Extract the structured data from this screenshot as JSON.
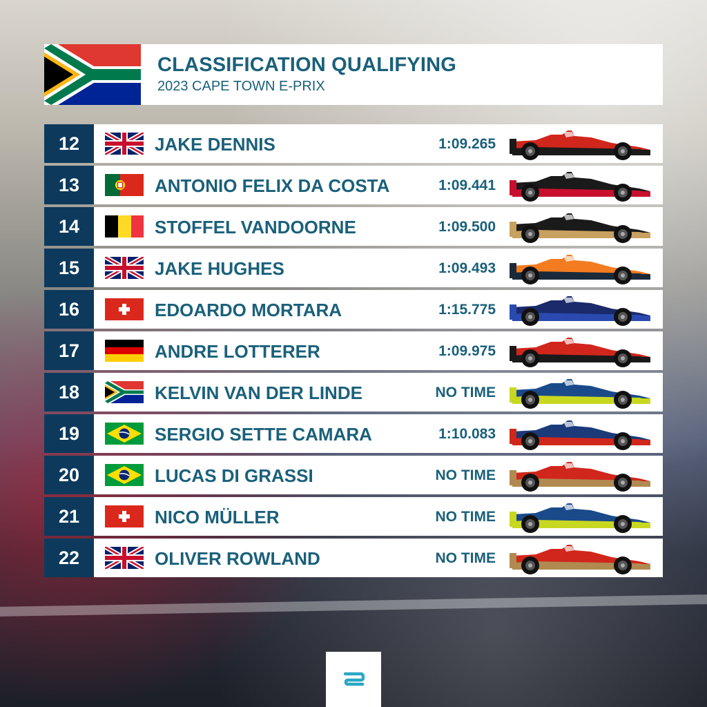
{
  "header": {
    "title": "CLASSIFICATION QUALIFYING",
    "subtitle": "2023 CAPE TOWN E-PRIX",
    "flag": "south-africa"
  },
  "rows": [
    {
      "pos": "12",
      "name": "JAKE DENNIS",
      "time": "1:09.265",
      "flag": "uk",
      "car_colors": [
        "#d0261c",
        "#1a1a1a"
      ]
    },
    {
      "pos": "13",
      "name": "ANTONIO FELIX DA COSTA",
      "time": "1:09.441",
      "flag": "portugal",
      "car_colors": [
        "#1a1a1a",
        "#c8102e"
      ]
    },
    {
      "pos": "14",
      "name": "STOFFEL VANDOORNE",
      "time": "1:09.500",
      "flag": "belgium",
      "car_colors": [
        "#1a1a1a",
        "#c8a060"
      ]
    },
    {
      "pos": "15",
      "name": "JAKE HUGHES",
      "time": "1:09.493",
      "flag": "uk",
      "car_colors": [
        "#f47b20",
        "#1a2a3a"
      ]
    },
    {
      "pos": "16",
      "name": "EDOARDO MORTARA",
      "time": "1:15.775",
      "flag": "switzerland",
      "car_colors": [
        "#1a2a6a",
        "#2a4ab0"
      ]
    },
    {
      "pos": "17",
      "name": "ANDRE LOTTERER",
      "time": "1:09.975",
      "flag": "germany",
      "car_colors": [
        "#d0261c",
        "#1a1a1a"
      ]
    },
    {
      "pos": "18",
      "name": "KELVIN VAN DER LINDE",
      "time": "NO TIME",
      "flag": "south-africa",
      "car_colors": [
        "#1a4a8a",
        "#c8d820"
      ]
    },
    {
      "pos": "19",
      "name": "SERGIO SETTE CAMARA",
      "time": "1:10.083",
      "flag": "brazil",
      "car_colors": [
        "#1a3a7a",
        "#d0261c"
      ]
    },
    {
      "pos": "20",
      "name": "LUCAS DI GRASSI",
      "time": "NO TIME",
      "flag": "brazil",
      "car_colors": [
        "#d0261c",
        "#b08a50"
      ]
    },
    {
      "pos": "21",
      "name": "NICO MÜLLER",
      "time": "NO TIME",
      "flag": "switzerland",
      "car_colors": [
        "#1a4a8a",
        "#c8d820"
      ]
    },
    {
      "pos": "22",
      "name": "OLIVER ROWLAND",
      "time": "NO TIME",
      "flag": "uk",
      "car_colors": [
        "#d0261c",
        "#b08a50"
      ]
    }
  ],
  "logo": "formula-e-logo",
  "colors": {
    "accent": "#1a607a",
    "position_bg": "#0d3a5c",
    "logo": "#2aa8c4"
  }
}
